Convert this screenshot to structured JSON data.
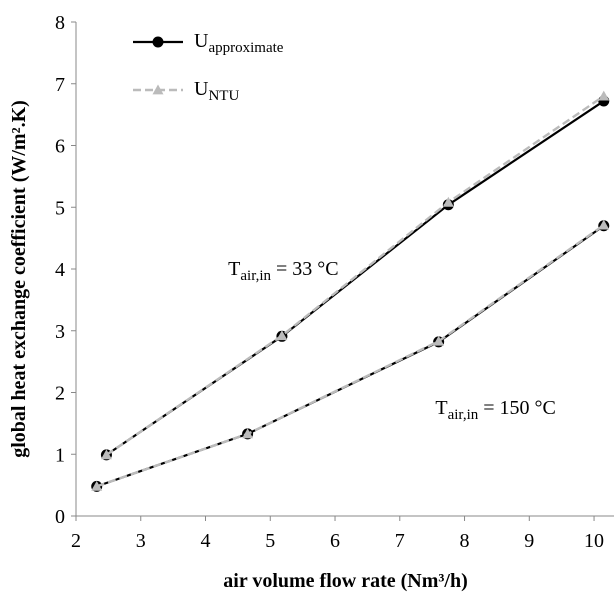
{
  "chart_data": {
    "type": "line",
    "xlabel": "air volume flow rate (Nm³/h)",
    "ylabel": "global heat exchange coefficient (W/m².K)",
    "xlim": [
      2,
      10.2
    ],
    "ylim": [
      0,
      8
    ],
    "x_ticks": [
      2,
      3,
      4,
      5,
      6,
      7,
      8,
      9,
      10
    ],
    "y_ticks": [
      0,
      1,
      2,
      3,
      4,
      5,
      6,
      7,
      8
    ],
    "grid": false,
    "legend_position": "top-left",
    "series": [
      {
        "name": "U_approximate",
        "label_main": "U",
        "label_sub": "approximate",
        "color": "#000000",
        "style": "solid",
        "marker": "circle",
        "groups": [
          {
            "x": [
              2.47,
              5.18,
              7.75,
              10.15
            ],
            "y": [
              0.99,
              2.91,
              5.04,
              6.72
            ]
          },
          {
            "x": [
              2.32,
              4.65,
              7.6,
              10.15
            ],
            "y": [
              0.48,
              1.33,
              2.82,
              4.7
            ]
          }
        ]
      },
      {
        "name": "U_NTU",
        "label_main": "U",
        "label_sub": "NTU",
        "color": "#bbbbbb",
        "style": "dashed",
        "marker": "triangle",
        "groups": [
          {
            "x": [
              2.47,
              5.18,
              7.75,
              10.15
            ],
            "y": [
              0.99,
              2.92,
              5.08,
              6.8
            ]
          },
          {
            "x": [
              2.32,
              4.65,
              7.6,
              10.15
            ],
            "y": [
              0.48,
              1.33,
              2.83,
              4.71
            ]
          }
        ]
      }
    ],
    "annotations": [
      {
        "main": "T",
        "sub": "air,in",
        "rest": " = 33 °C",
        "x": 4.35,
        "y": 3.9
      },
      {
        "main": "T",
        "sub": "air,in",
        "rest": " = 150 °C",
        "x": 7.55,
        "y": 1.65
      }
    ]
  }
}
